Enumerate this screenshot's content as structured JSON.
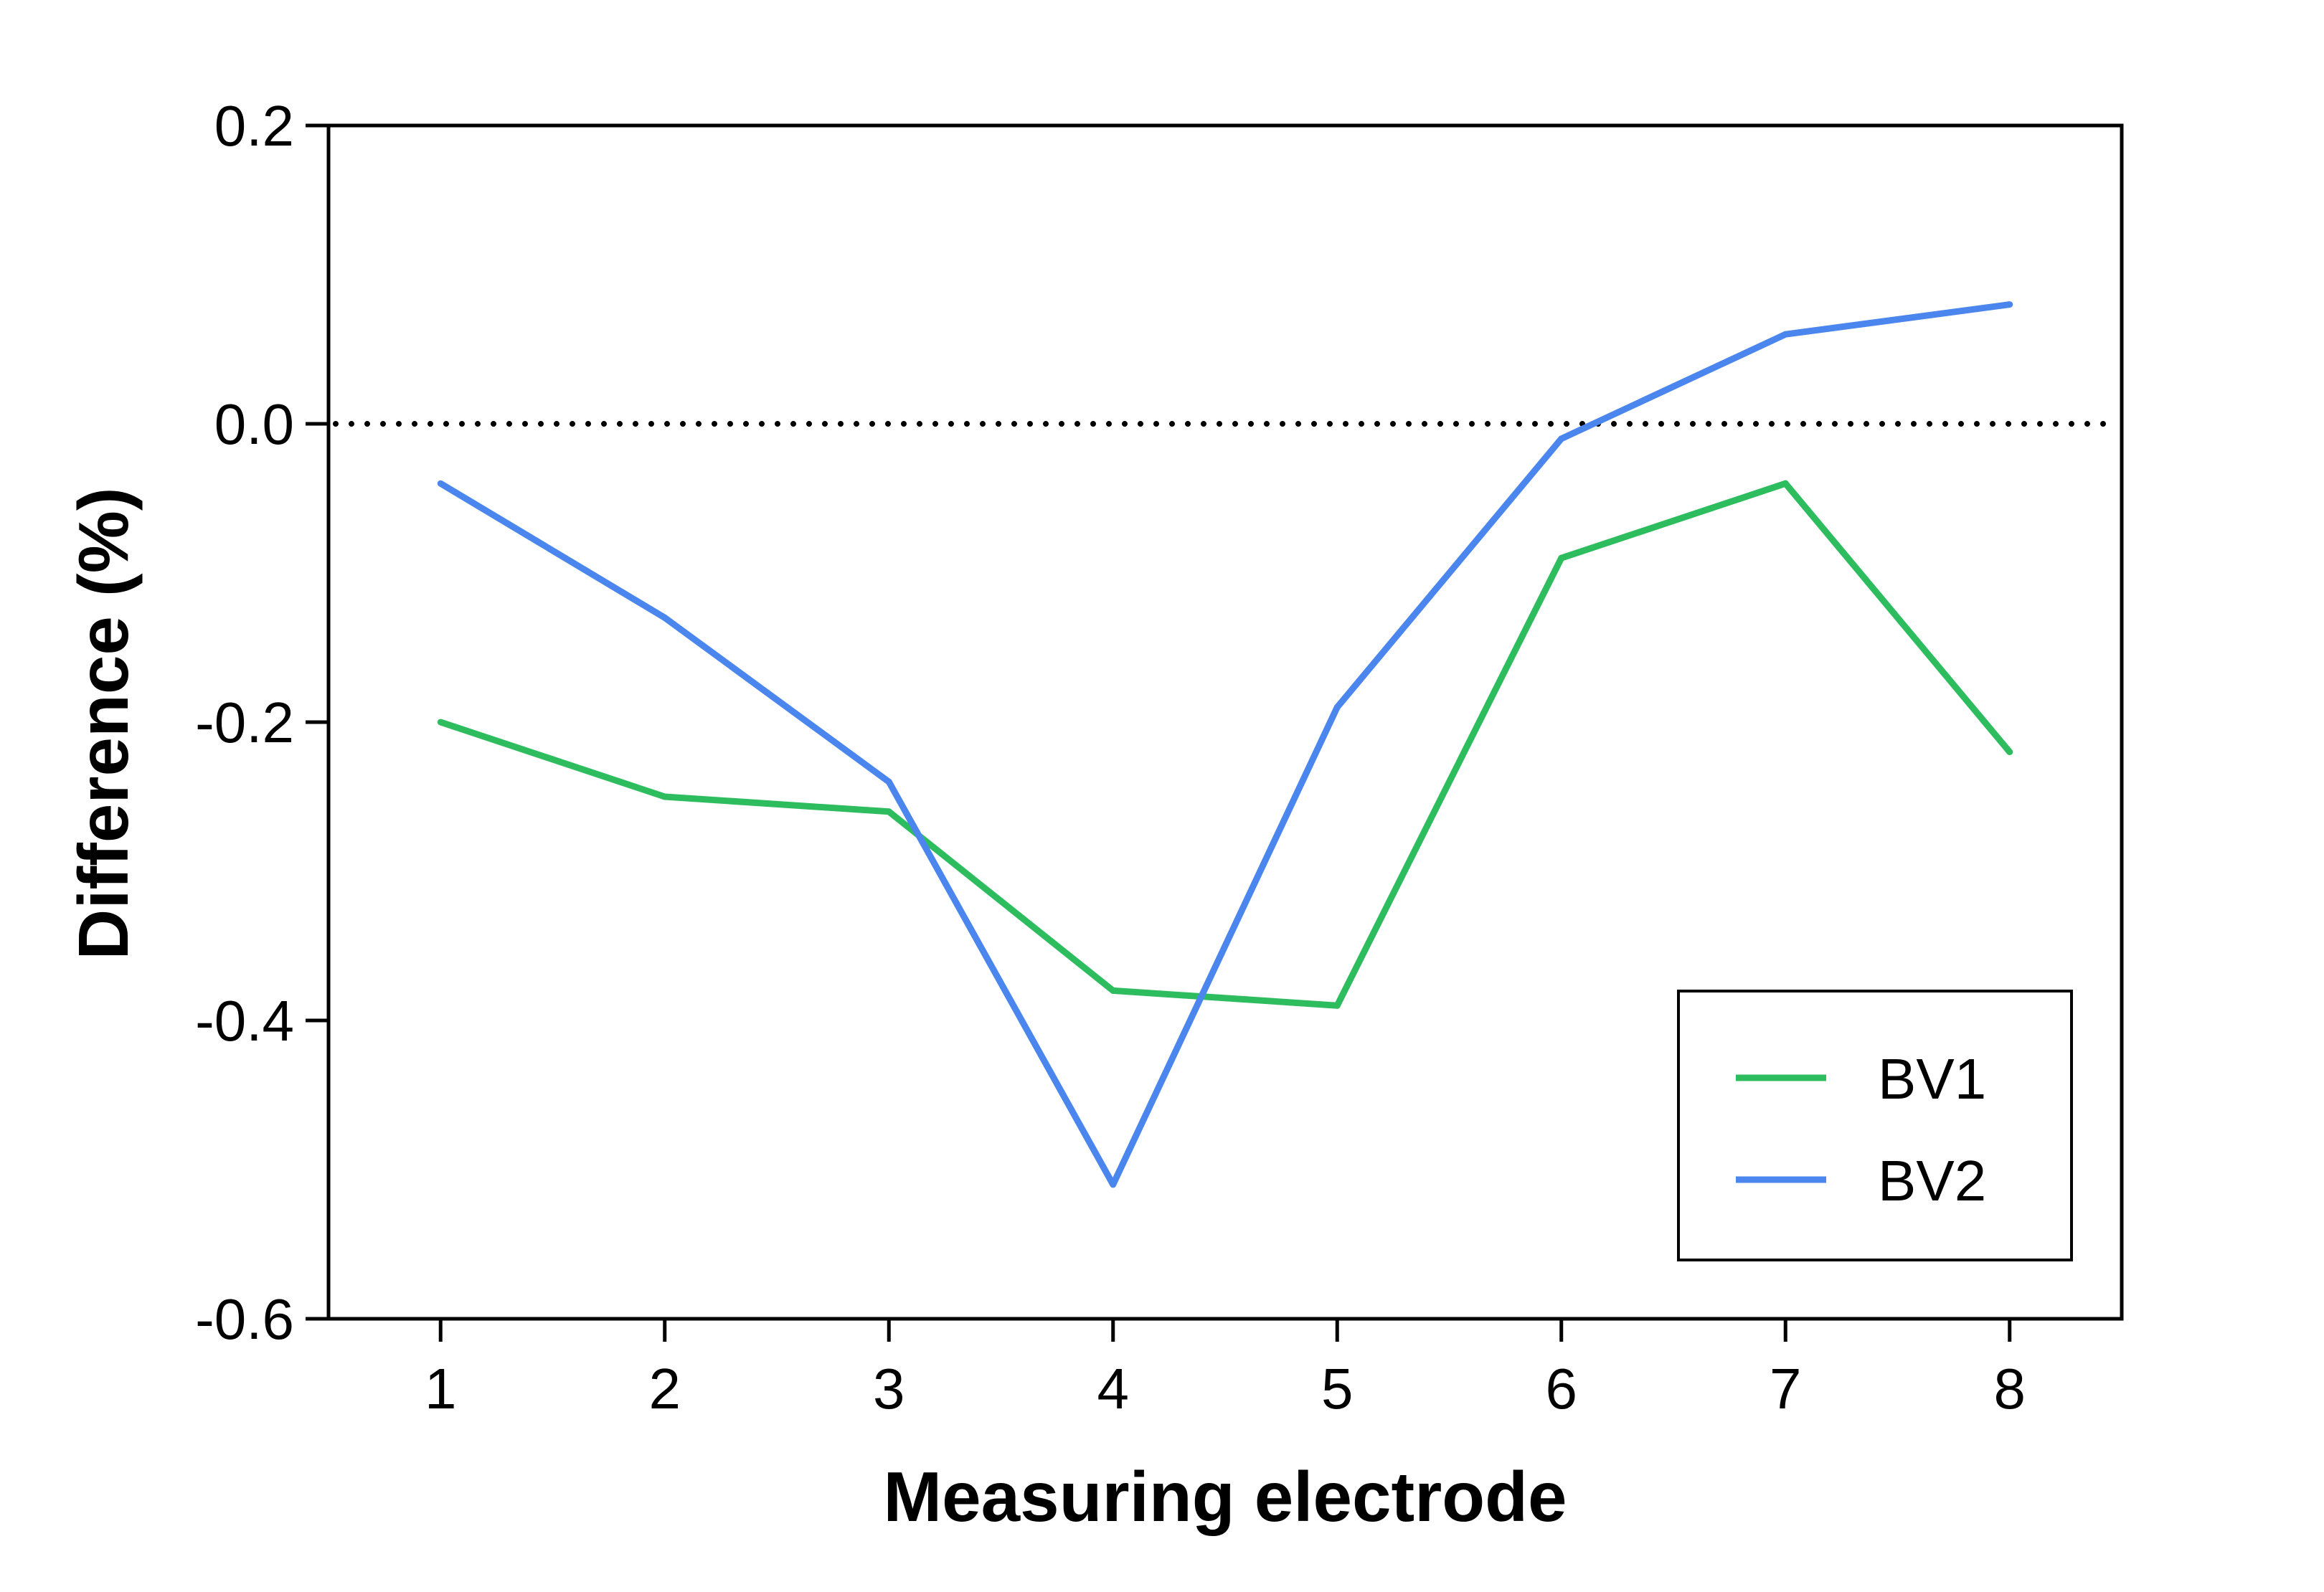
{
  "chart_data": {
    "type": "line",
    "title": "",
    "xlabel": "Measuring electrode",
    "ylabel": "Difference (%)",
    "x": [
      1,
      2,
      3,
      4,
      5,
      6,
      7,
      8
    ],
    "xticks": [
      "1",
      "2",
      "3",
      "4",
      "5",
      "6",
      "7",
      "8"
    ],
    "xlim": [
      0.5,
      8.5
    ],
    "ylim": [
      -0.6,
      0.2
    ],
    "yticks": [
      0.2,
      0.0,
      -0.2,
      -0.4,
      -0.6
    ],
    "ytick_labels": [
      "0.2",
      "0.0",
      "-0.2",
      "-0.4",
      "-0.6"
    ],
    "reference_line": {
      "y": 0.0,
      "style": "dotted"
    },
    "grid": false,
    "legend_position": "bottom-right",
    "series": [
      {
        "name": "BV1",
        "color": "#2dbd5e",
        "values": [
          -0.2,
          -0.25,
          -0.26,
          -0.38,
          -0.39,
          -0.09,
          -0.04,
          -0.22
        ]
      },
      {
        "name": "BV2",
        "color": "#4a86ee",
        "values": [
          -0.04,
          -0.13,
          -0.24,
          -0.51,
          -0.19,
          -0.01,
          0.06,
          0.08
        ]
      }
    ]
  }
}
